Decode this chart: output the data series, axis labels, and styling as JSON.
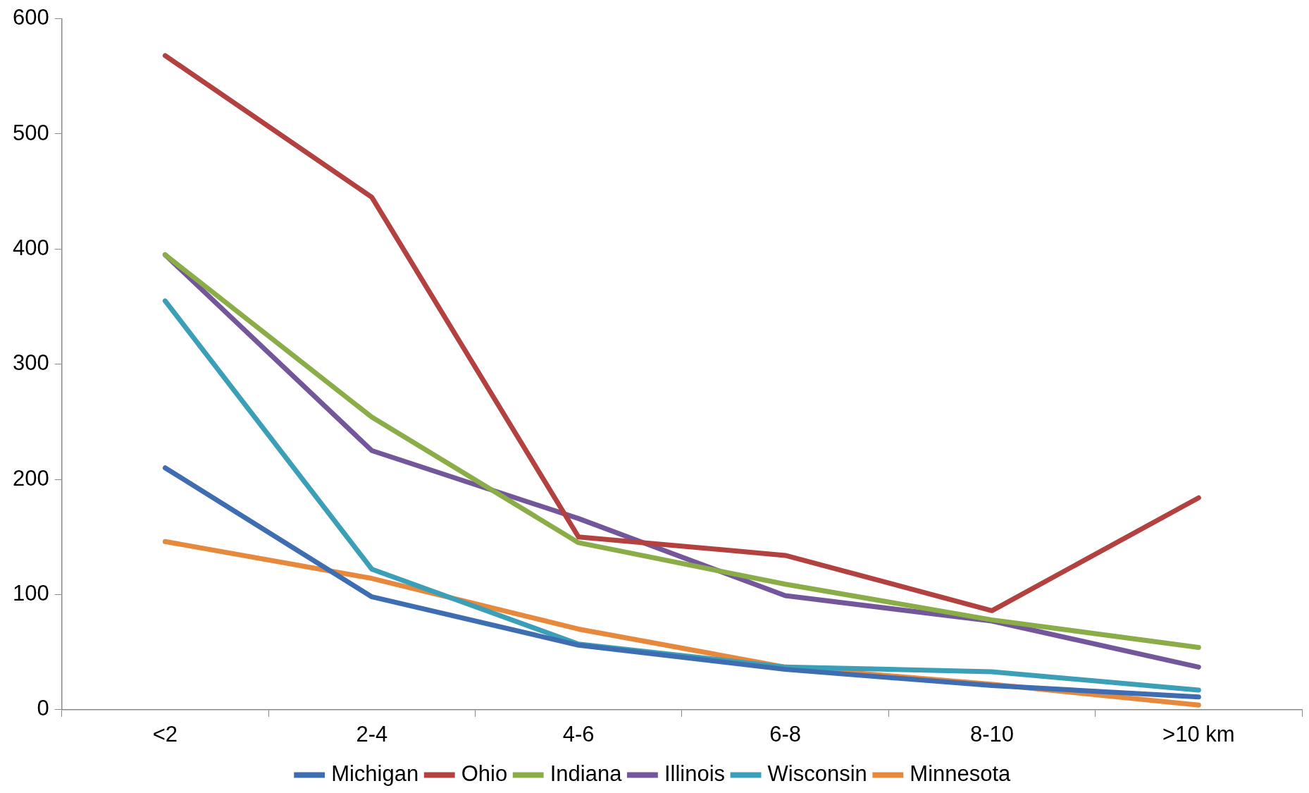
{
  "chart_data": {
    "type": "line",
    "categories": [
      "<2",
      "2-4",
      "4-6",
      "6-8",
      "8-10",
      ">10 km"
    ],
    "series": [
      {
        "name": "Michigan",
        "color": "#3e6db1",
        "values": [
          210,
          98,
          56,
          35,
          21,
          11
        ]
      },
      {
        "name": "Ohio",
        "color": "#b24140",
        "values": [
          568,
          445,
          150,
          134,
          86,
          184
        ]
      },
      {
        "name": "Indiana",
        "color": "#8aad48",
        "values": [
          395,
          254,
          145,
          109,
          78,
          54
        ]
      },
      {
        "name": "Illinois",
        "color": "#73579a",
        "values": [
          395,
          225,
          166,
          99,
          77,
          37
        ]
      },
      {
        "name": "Wisconsin",
        "color": "#3c9fb8",
        "values": [
          355,
          122,
          57,
          37,
          33,
          17
        ]
      },
      {
        "name": "Minnesota",
        "color": "#e7893c",
        "values": [
          146,
          114,
          70,
          37,
          22,
          4
        ]
      }
    ],
    "ylim": [
      0,
      600
    ],
    "yticks": [
      0,
      100,
      200,
      300,
      400,
      500,
      600
    ],
    "grid": false,
    "legend": "bottom",
    "marker": "none",
    "line_style": "solid"
  }
}
